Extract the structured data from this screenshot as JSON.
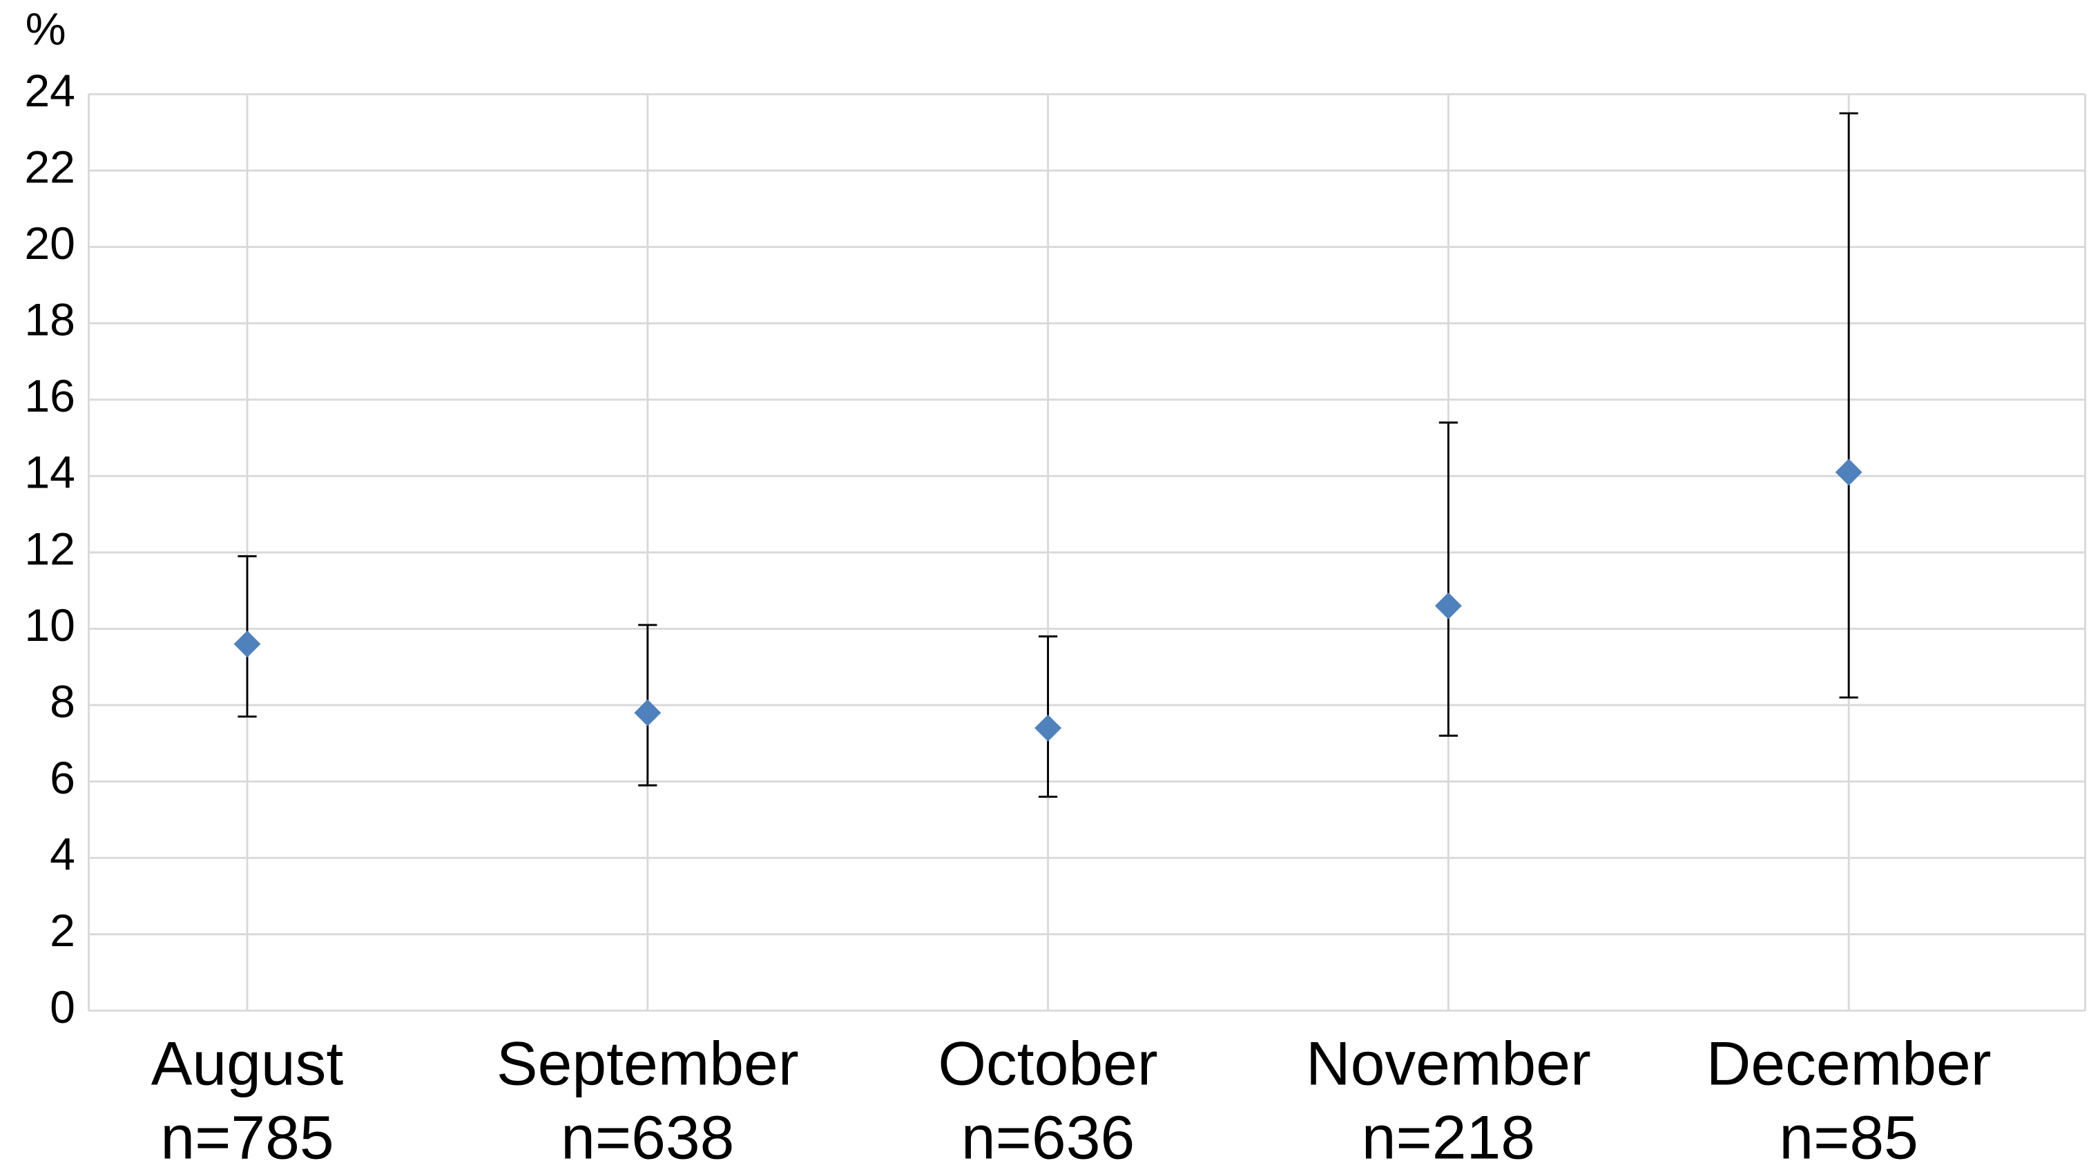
{
  "chart_data": {
    "type": "errorbar",
    "y_label": "%",
    "categories": [
      "August",
      "September",
      "October",
      "November",
      "December"
    ],
    "sample_sizes": [
      "n=785",
      "n=638",
      "n=636",
      "n=218",
      "n=85"
    ],
    "series": [
      {
        "color": "#4f81bd",
        "values": [
          9.6,
          7.8,
          7.4,
          10.6,
          14.1
        ],
        "lower": [
          7.7,
          5.9,
          5.6,
          7.2,
          8.2
        ],
        "upper": [
          11.9,
          10.1,
          9.8,
          15.4,
          23.5
        ]
      }
    ],
    "ylim": [
      0,
      24
    ],
    "yticks": [
      0,
      2,
      4,
      6,
      8,
      10,
      12,
      14,
      16,
      18,
      20,
      22,
      24
    ],
    "grid": true
  }
}
